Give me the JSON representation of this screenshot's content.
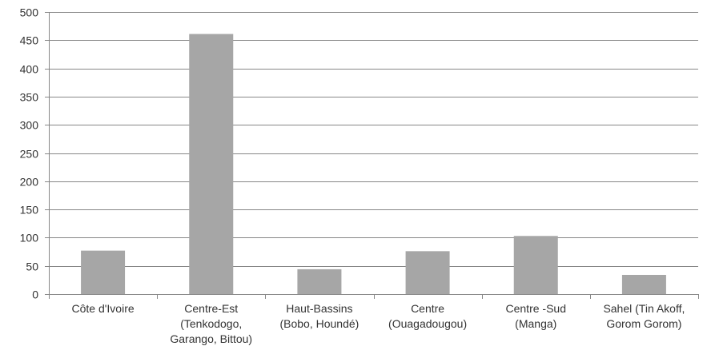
{
  "chart_data": {
    "type": "bar",
    "title": "",
    "xlabel": "",
    "ylabel": "",
    "categories": [
      "Côte d'Ivoire",
      "Centre-Est (Tenkodogo, Garango, Bittou)",
      "Haut-Bassins (Bobo, Houndé)",
      "Centre (Ouagadougou)",
      "Centre -Sud (Manga)",
      "Sahel (Tin Akoff, Gorom Gorom)"
    ],
    "category_label_lines": [
      [
        "Côte d'Ivoire"
      ],
      [
        "Centre-Est",
        "(Tenkodogo,",
        "Garango, Bittou)"
      ],
      [
        "Haut-Bassins",
        "(Bobo, Houndé)"
      ],
      [
        "Centre",
        "(Ouagadougou)"
      ],
      [
        "Centre -Sud",
        "(Manga)"
      ],
      [
        "Sahel (Tin Akoff,",
        "Gorom Gorom)"
      ]
    ],
    "values": [
      77,
      461,
      44,
      76,
      103,
      34
    ],
    "ylim": [
      0,
      500
    ],
    "yticks": [
      0,
      50,
      100,
      150,
      200,
      250,
      300,
      350,
      400,
      450,
      500
    ],
    "grid": true,
    "legend": "none",
    "colors": {
      "bar": "#a6a6a6",
      "grid": "#878787",
      "axis": "#878787",
      "text": "#333333"
    }
  }
}
